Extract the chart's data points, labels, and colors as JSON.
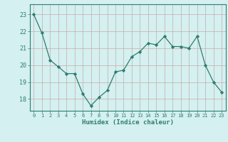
{
  "x": [
    0,
    1,
    2,
    3,
    4,
    5,
    6,
    7,
    8,
    9,
    10,
    11,
    12,
    13,
    14,
    15,
    16,
    17,
    18,
    19,
    20,
    21,
    22,
    23
  ],
  "y": [
    23.0,
    21.9,
    20.3,
    19.9,
    19.5,
    19.5,
    18.3,
    17.6,
    18.1,
    18.5,
    19.6,
    19.7,
    20.5,
    20.8,
    21.3,
    21.2,
    21.7,
    21.1,
    21.1,
    21.0,
    21.7,
    20.0,
    19.0,
    18.4
  ],
  "line_color": "#2e7d6e",
  "marker": "D",
  "marker_size": 2.2,
  "bg_color": "#d4f0f0",
  "grid_color": "#c8aaaa",
  "xlabel": "Humidex (Indice chaleur)",
  "ylim": [
    17.3,
    23.6
  ],
  "xlim": [
    -0.5,
    23.5
  ],
  "yticks": [
    18,
    19,
    20,
    21,
    22,
    23
  ],
  "xtick_labels": [
    "0",
    "1",
    "2",
    "3",
    "4",
    "5",
    "6",
    "7",
    "8",
    "9",
    "10",
    "11",
    "12",
    "13",
    "14",
    "15",
    "16",
    "17",
    "18",
    "19",
    "20",
    "21",
    "22",
    "23"
  ]
}
